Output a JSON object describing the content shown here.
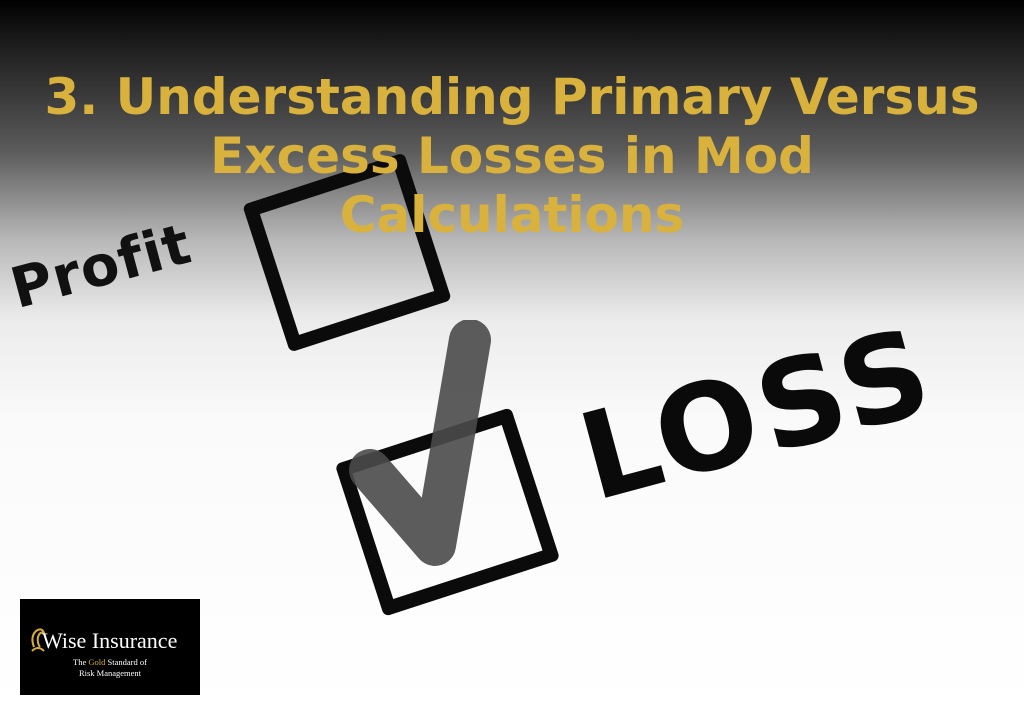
{
  "title": {
    "lines": [
      "3. Understanding Primary Versus",
      "Excess Losses in Mod",
      "Calculations"
    ],
    "color": "#d9b23e"
  },
  "photo": {
    "word_top": "Profit",
    "word_bottom": "LOSS",
    "checked": "LOSS"
  },
  "logo": {
    "name": "Wise Insurance",
    "tagline_pre": "The ",
    "tagline_gold": "Gold",
    "tagline_post": " Standard of",
    "tagline_line2": "Risk Management",
    "gold_color": "#d4ae3c"
  }
}
